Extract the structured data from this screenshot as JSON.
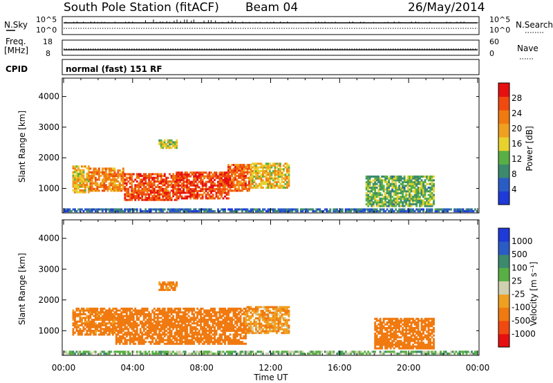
{
  "header": {
    "station": "South Pole Station (fitACF)",
    "beam": "Beam 04",
    "date": "26/May/2014"
  },
  "sky_panel": {
    "left_label": "N.Sky",
    "right_label": "N.Search",
    "left_ticks": [
      "10^5",
      "10^0"
    ],
    "right_ticks": [
      "10^5",
      "10^0"
    ]
  },
  "freq_panel": {
    "left_label_line1": "Freq.",
    "left_label_line2": "[MHz]",
    "right_label": "Nave",
    "left_ticks": [
      "18",
      "8"
    ],
    "right_ticks": [
      "60",
      "0"
    ],
    "ylim_freq": [
      8,
      18
    ],
    "freq_value": 11.6,
    "nave_value": 25
  },
  "cpid_panel": {
    "label": "CPID",
    "text": "normal (fast) 151 RF"
  },
  "x_axis": {
    "label": "Time UT",
    "ticks": [
      "00:00",
      "04:00",
      "08:00",
      "12:00",
      "16:00",
      "20:00",
      "00:00"
    ]
  },
  "colors": {
    "power_scale": [
      "#1f3ad8",
      "#2a5cc6",
      "#3c8a6e",
      "#58b044",
      "#e8d22e",
      "#f0a020",
      "#f07a10",
      "#f04a10",
      "#e61010"
    ],
    "velocity_scale": [
      "#e61010",
      "#f04a10",
      "#f07a10",
      "#f0a020",
      "#d0d0b0",
      "#58b044",
      "#3c8a6e",
      "#2a5cc6",
      "#1f3ad8"
    ]
  },
  "chart_data": [
    {
      "type": "heatmap",
      "quantity": "power",
      "ylabel": "Slant Range [km]",
      "xlabel": "Time UT",
      "x_units": "hours UT",
      "xlim": [
        0,
        24
      ],
      "ylim": [
        200,
        4600
      ],
      "yticks": [
        "1000",
        "2000",
        "3000",
        "4000"
      ],
      "colorbar": {
        "label": "Power [dB]",
        "ticks": [
          "4",
          "8",
          "12",
          "16",
          "20",
          "24",
          "28"
        ],
        "range": [
          0,
          32
        ]
      },
      "regions": [
        {
          "t0": 0.5,
          "t1": 1.5,
          "r0": 850,
          "r1": 1750,
          "value": 18
        },
        {
          "t0": 1.5,
          "t1": 3.5,
          "r0": 900,
          "r1": 1650,
          "value": 22
        },
        {
          "t0": 3.5,
          "t1": 6.5,
          "r0": 600,
          "r1": 1500,
          "value": 26
        },
        {
          "t0": 6.5,
          "t1": 9.5,
          "r0": 650,
          "r1": 1550,
          "value": 27
        },
        {
          "t0": 9.5,
          "t1": 10.8,
          "r0": 900,
          "r1": 1800,
          "value": 25
        },
        {
          "t0": 10.8,
          "t1": 13.0,
          "r0": 1000,
          "r1": 1800,
          "value": 18
        },
        {
          "t0": 5.5,
          "t1": 6.5,
          "r0": 2300,
          "r1": 2600,
          "value": 15
        },
        {
          "t0": 17.5,
          "t1": 21.5,
          "r0": 400,
          "r1": 1400,
          "value": 12
        },
        {
          "t0": 0.0,
          "t1": 24.0,
          "r0": 230,
          "r1": 330,
          "value": 6
        }
      ]
    },
    {
      "type": "heatmap",
      "quantity": "velocity",
      "ylabel": "Slant Range [km]",
      "xlabel": "Time UT",
      "x_units": "hours UT",
      "xlim": [
        0,
        24
      ],
      "ylim": [
        200,
        4600
      ],
      "yticks": [
        "1000",
        "2000",
        "3000",
        "4000"
      ],
      "colorbar": {
        "label": "Velocity [m s⁻¹]",
        "ticks": [
          "1000",
          "500",
          "100",
          "25",
          "-25",
          "-100",
          "-500",
          "-1000"
        ]
      },
      "regions": [
        {
          "t0": 0.5,
          "t1": 3.0,
          "r0": 850,
          "r1": 1750,
          "value": -150
        },
        {
          "t0": 3.0,
          "t1": 10.5,
          "r0": 550,
          "r1": 1750,
          "value": -200
        },
        {
          "t0": 10.5,
          "t1": 13.0,
          "r0": 900,
          "r1": 1800,
          "value": -80
        },
        {
          "t0": 5.5,
          "t1": 6.5,
          "r0": 2300,
          "r1": 2600,
          "value": -150
        },
        {
          "t0": 18.0,
          "t1": 21.5,
          "r0": 400,
          "r1": 1400,
          "value": -250
        },
        {
          "t0": 0.0,
          "t1": 24.0,
          "r0": 230,
          "r1": 330,
          "value": 60
        }
      ]
    }
  ]
}
